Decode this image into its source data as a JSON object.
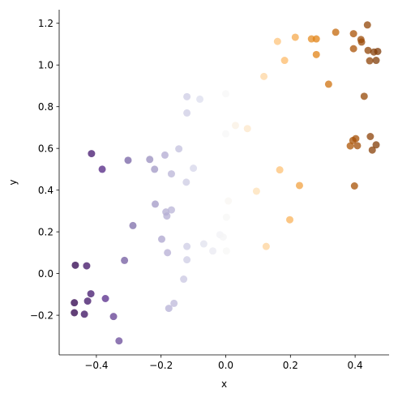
{
  "chart_data": {
    "type": "scatter",
    "title": "",
    "xlabel": "x",
    "ylabel": "y",
    "xlim": [
      -0.515,
      0.505
    ],
    "ylim": [
      -0.39,
      1.265
    ],
    "xticks": [
      -0.4,
      -0.2,
      0.0,
      0.2,
      0.4
    ],
    "xtick_labels": [
      "−0.4",
      "−0.2",
      "0.0",
      "0.2",
      "0.4"
    ],
    "yticks": [
      -0.2,
      0.0,
      0.2,
      0.4,
      0.6,
      0.8,
      1.0,
      1.2
    ],
    "ytick_labels": [
      "−0.2",
      "0.0",
      "0.2",
      "0.4",
      "0.6",
      "0.8",
      "1.0",
      "1.2"
    ],
    "grid": false,
    "legend": "none",
    "colormap": "PuOr_r",
    "color_by": "x",
    "marker_alpha": 0.75,
    "points": [
      {
        "x": -0.465,
        "y": 0.04
      },
      {
        "x": -0.43,
        "y": 0.037
      },
      {
        "x": -0.468,
        "y": -0.14
      },
      {
        "x": -0.427,
        "y": -0.132
      },
      {
        "x": -0.468,
        "y": -0.188
      },
      {
        "x": -0.437,
        "y": -0.195
      },
      {
        "x": -0.417,
        "y": -0.097
      },
      {
        "x": -0.372,
        "y": -0.12
      },
      {
        "x": -0.347,
        "y": -0.206
      },
      {
        "x": -0.33,
        "y": -0.323
      },
      {
        "x": -0.415,
        "y": 0.575
      },
      {
        "x": -0.382,
        "y": 0.5
      },
      {
        "x": -0.313,
        "y": 0.063
      },
      {
        "x": -0.302,
        "y": 0.543
      },
      {
        "x": -0.287,
        "y": 0.23
      },
      {
        "x": -0.235,
        "y": 0.547
      },
      {
        "x": -0.22,
        "y": 0.5
      },
      {
        "x": -0.218,
        "y": 0.333
      },
      {
        "x": -0.198,
        "y": 0.165
      },
      {
        "x": -0.188,
        "y": 0.568
      },
      {
        "x": -0.185,
        "y": 0.295
      },
      {
        "x": -0.182,
        "y": 0.276
      },
      {
        "x": -0.18,
        "y": 0.1
      },
      {
        "x": -0.176,
        "y": -0.167
      },
      {
        "x": -0.168,
        "y": 0.478
      },
      {
        "x": -0.168,
        "y": 0.305
      },
      {
        "x": -0.16,
        "y": -0.143
      },
      {
        "x": -0.145,
        "y": 0.598
      },
      {
        "x": -0.13,
        "y": -0.027
      },
      {
        "x": -0.122,
        "y": 0.438
      },
      {
        "x": -0.12,
        "y": 0.848
      },
      {
        "x": -0.12,
        "y": 0.77
      },
      {
        "x": -0.12,
        "y": 0.13
      },
      {
        "x": -0.12,
        "y": 0.066
      },
      {
        "x": -0.1,
        "y": 0.505
      },
      {
        "x": -0.08,
        "y": 0.836
      },
      {
        "x": -0.068,
        "y": 0.142
      },
      {
        "x": -0.04,
        "y": 0.108
      },
      {
        "x": -0.018,
        "y": 0.186
      },
      {
        "x": -0.008,
        "y": 0.175
      },
      {
        "x": 0.0,
        "y": 0.862
      },
      {
        "x": 0.0,
        "y": 0.67
      },
      {
        "x": 0.002,
        "y": 0.27
      },
      {
        "x": 0.002,
        "y": 0.108
      },
      {
        "x": 0.008,
        "y": 0.348
      },
      {
        "x": 0.03,
        "y": 0.71
      },
      {
        "x": 0.067,
        "y": 0.695
      },
      {
        "x": 0.095,
        "y": 0.395
      },
      {
        "x": 0.118,
        "y": 0.945
      },
      {
        "x": 0.125,
        "y": 0.13
      },
      {
        "x": 0.16,
        "y": 1.113
      },
      {
        "x": 0.167,
        "y": 0.497
      },
      {
        "x": 0.182,
        "y": 1.022
      },
      {
        "x": 0.198,
        "y": 0.258
      },
      {
        "x": 0.215,
        "y": 1.133
      },
      {
        "x": 0.228,
        "y": 0.422
      },
      {
        "x": 0.265,
        "y": 1.125
      },
      {
        "x": 0.28,
        "y": 1.125
      },
      {
        "x": 0.28,
        "y": 1.05
      },
      {
        "x": 0.318,
        "y": 0.908
      },
      {
        "x": 0.34,
        "y": 1.157
      },
      {
        "x": 0.385,
        "y": 0.612
      },
      {
        "x": 0.393,
        "y": 0.638
      },
      {
        "x": 0.395,
        "y": 1.15
      },
      {
        "x": 0.395,
        "y": 1.078
      },
      {
        "x": 0.398,
        "y": 0.42
      },
      {
        "x": 0.402,
        "y": 0.647
      },
      {
        "x": 0.407,
        "y": 0.613
      },
      {
        "x": 0.418,
        "y": 1.122
      },
      {
        "x": 0.42,
        "y": 1.11
      },
      {
        "x": 0.428,
        "y": 0.85
      },
      {
        "x": 0.438,
        "y": 1.192
      },
      {
        "x": 0.44,
        "y": 1.07
      },
      {
        "x": 0.445,
        "y": 1.02
      },
      {
        "x": 0.447,
        "y": 0.657
      },
      {
        "x": 0.453,
        "y": 0.592
      },
      {
        "x": 0.458,
        "y": 1.062
      },
      {
        "x": 0.465,
        "y": 1.022
      },
      {
        "x": 0.465,
        "y": 0.617
      },
      {
        "x": 0.47,
        "y": 1.065
      }
    ]
  }
}
